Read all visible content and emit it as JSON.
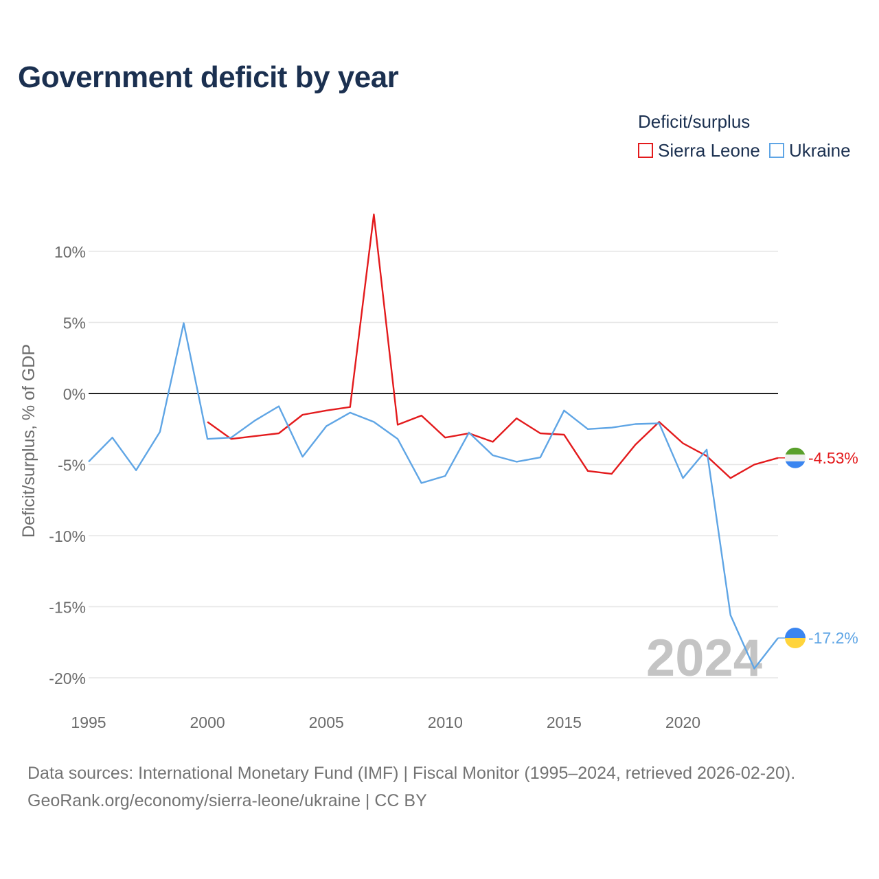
{
  "chart_data": {
    "type": "line",
    "title": "Government deficit by year",
    "xlabel": "",
    "ylabel": "Deficit/surplus, % of GDP",
    "xlim": [
      1995,
      2024
    ],
    "ylim": [
      -20,
      10
    ],
    "y_ticks": [
      10,
      5,
      0,
      -5,
      -10,
      -15,
      -20
    ],
    "y_tick_labels": [
      "10%",
      "5%",
      "0%",
      "-5%",
      "-10%",
      "-15%",
      "-20%"
    ],
    "x_ticks": [
      1995,
      2000,
      2005,
      2010,
      2015,
      2020
    ],
    "x_tick_labels": [
      "1995",
      "2000",
      "2005",
      "2010",
      "2015",
      "2020"
    ],
    "legend_title": "Deficit/surplus",
    "year_watermark": "2024",
    "series": [
      {
        "name": "Sierra Leone",
        "color": "#e31a1c",
        "end_label": "-4.53%",
        "flag_colors": [
          "#5aa02c",
          "#eeeeee",
          "#3a85f0"
        ],
        "x": [
          2000,
          2001,
          2002,
          2003,
          2004,
          2005,
          2006,
          2007,
          2008,
          2009,
          2010,
          2011,
          2012,
          2013,
          2014,
          2015,
          2016,
          2017,
          2018,
          2019,
          2020,
          2021,
          2022,
          2023,
          2024
        ],
        "values": [
          -2.0,
          -3.2,
          -3.0,
          -2.8,
          -1.5,
          -1.2,
          -0.95,
          12.6,
          -2.2,
          -1.55,
          -3.1,
          -2.8,
          -3.4,
          -1.75,
          -2.8,
          -2.9,
          -5.45,
          -5.65,
          -3.6,
          -2.0,
          -3.5,
          -4.4,
          -5.95,
          -5.0,
          -4.53
        ]
      },
      {
        "name": "Ukraine",
        "color": "#5fa5e5",
        "end_label": "-17.2%",
        "flag_colors": [
          "#3a85f0",
          "#ffd43b"
        ],
        "x": [
          1995,
          1996,
          1997,
          1998,
          1999,
          2000,
          2001,
          2002,
          2003,
          2004,
          2005,
          2006,
          2007,
          2008,
          2009,
          2010,
          2011,
          2012,
          2013,
          2014,
          2015,
          2016,
          2017,
          2018,
          2019,
          2020,
          2021,
          2022,
          2023,
          2024
        ],
        "values": [
          -4.8,
          -3.1,
          -5.4,
          -2.7,
          4.95,
          -3.2,
          -3.1,
          -1.9,
          -0.9,
          -4.45,
          -2.3,
          -1.35,
          -2.0,
          -3.2,
          -6.3,
          -5.8,
          -2.75,
          -4.35,
          -4.8,
          -4.5,
          -1.2,
          -2.5,
          -2.4,
          -2.15,
          -2.1,
          -5.95,
          -3.95,
          -15.6,
          -19.35,
          -17.2
        ]
      }
    ]
  },
  "footer": {
    "line1": "Data sources: International Monetary Fund (IMF) | Fiscal Monitor (1995–2024, retrieved 2026-02-20).",
    "line2": "GeoRank.org/economy/sierra-leone/ukraine | CC BY"
  }
}
